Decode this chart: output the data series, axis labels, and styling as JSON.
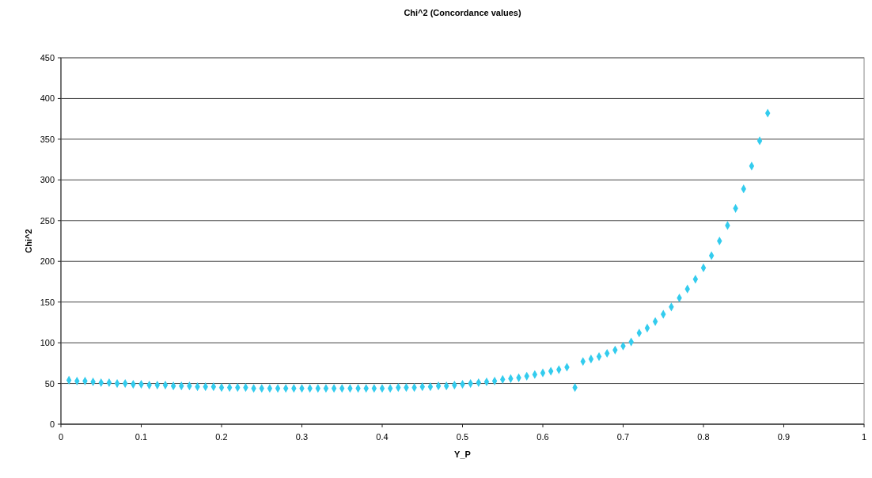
{
  "chart_data": {
    "type": "scatter",
    "title": "Chi^2 (Concordance values)",
    "xlabel": "Y_P",
    "ylabel": "Chi^2",
    "x": [
      0.01,
      0.02,
      0.03,
      0.04,
      0.05,
      0.06,
      0.07,
      0.08,
      0.09,
      0.1,
      0.11,
      0.12,
      0.13,
      0.14,
      0.15,
      0.16,
      0.17,
      0.18,
      0.19,
      0.2,
      0.21,
      0.22,
      0.23,
      0.24,
      0.25,
      0.26,
      0.27,
      0.28,
      0.29,
      0.3,
      0.31,
      0.32,
      0.33,
      0.34,
      0.35,
      0.36,
      0.37,
      0.38,
      0.39,
      0.4,
      0.41,
      0.42,
      0.43,
      0.44,
      0.45,
      0.46,
      0.47,
      0.48,
      0.49,
      0.5,
      0.51,
      0.52,
      0.53,
      0.54,
      0.55,
      0.56,
      0.57,
      0.58,
      0.59,
      0.6,
      0.61,
      0.62,
      0.63,
      0.64,
      0.65,
      0.66,
      0.67,
      0.68,
      0.69,
      0.7,
      0.71,
      0.72,
      0.73,
      0.74,
      0.75,
      0.76,
      0.77,
      0.78,
      0.79,
      0.8,
      0.81,
      0.82,
      0.83,
      0.84,
      0.85,
      0.86,
      0.87,
      0.88
    ],
    "series": [
      {
        "color": "#33ccee",
        "values": [
          54,
          53,
          53,
          52,
          51,
          51,
          50,
          50,
          49,
          49,
          48,
          48,
          48,
          47,
          47,
          47,
          46,
          46,
          46,
          45,
          45,
          45,
          45,
          44,
          44,
          44,
          44,
          44,
          44,
          44,
          44,
          44,
          44,
          44,
          44,
          44,
          44,
          44,
          44,
          44,
          44,
          45,
          45,
          45,
          46,
          46,
          47,
          47,
          48,
          49,
          50,
          51,
          52,
          53,
          55,
          56,
          57,
          59,
          61,
          63,
          65,
          67,
          70,
          45,
          77,
          80,
          83,
          87,
          91,
          96,
          101,
          112,
          118,
          126,
          135,
          144,
          155,
          166,
          178,
          192,
          207,
          225,
          244,
          265,
          289,
          317,
          348,
          382
        ]
      }
    ],
    "xlim": [
      0,
      1
    ],
    "xticks": [
      0,
      0.1,
      0.2,
      0.3,
      0.4,
      0.5,
      0.6,
      0.7,
      0.8,
      0.9,
      1
    ],
    "ylim": [
      0,
      450
    ],
    "yticks": [
      0,
      50,
      100,
      150,
      200,
      250,
      300,
      350,
      400,
      450
    ],
    "grid": "y",
    "marker": "diamond"
  }
}
